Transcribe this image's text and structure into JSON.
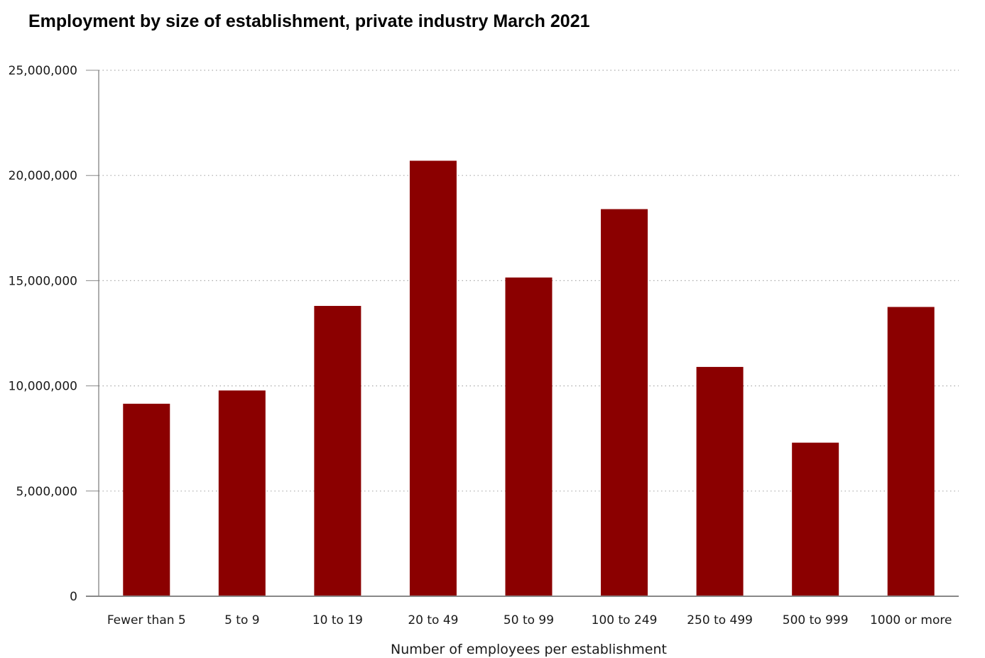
{
  "chart_data": {
    "type": "bar",
    "title": "Employment by size of establishment, private industry March 2021",
    "xlabel": "Number of employees per establishment",
    "ylabel": "",
    "categories": [
      "Fewer than 5",
      "5 to 9",
      "10 to 19",
      "20 to 49",
      "50 to 99",
      "100 to 249",
      "250 to 499",
      "500 to 999",
      "1000 or more"
    ],
    "values": [
      9150000,
      9780000,
      13800000,
      20700000,
      15150000,
      18400000,
      10900000,
      7300000,
      13750000
    ],
    "ylim": [
      0,
      25000000
    ],
    "yticks": [
      0,
      5000000,
      10000000,
      15000000,
      20000000,
      25000000
    ],
    "ytick_labels": [
      "0",
      "5,000,000",
      "10,000,000",
      "15,000,000",
      "20,000,000",
      "25,000,000"
    ],
    "grid": true,
    "legend": "none",
    "bar_color": "#8b0000"
  }
}
